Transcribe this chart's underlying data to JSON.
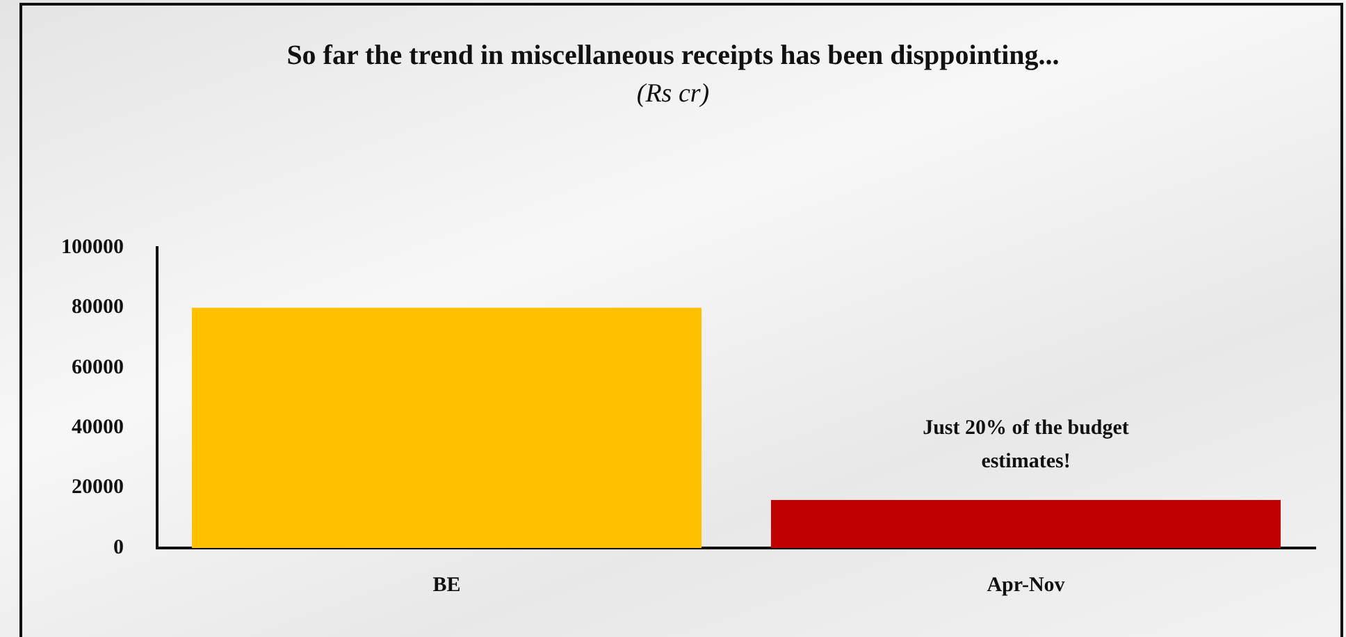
{
  "chart_data": {
    "type": "bar",
    "title": "So far the trend in miscellaneous receipts has been disppointing...",
    "subtitle": "(Rs cr)",
    "categories": [
      "BE",
      "Apr-Nov"
    ],
    "series": [
      {
        "colors": [
          "#ffc000",
          "#c00000"
        ],
        "values": [
          80000,
          16000
        ]
      }
    ],
    "ylim": [
      0,
      100000
    ],
    "yticks": [
      0,
      20000,
      40000,
      60000,
      80000,
      100000
    ],
    "grid": false,
    "legend": false,
    "annotations": [
      {
        "text": "Just 20% of the budget estimates!",
        "x": "Apr-Nov",
        "y": 16000
      }
    ]
  }
}
